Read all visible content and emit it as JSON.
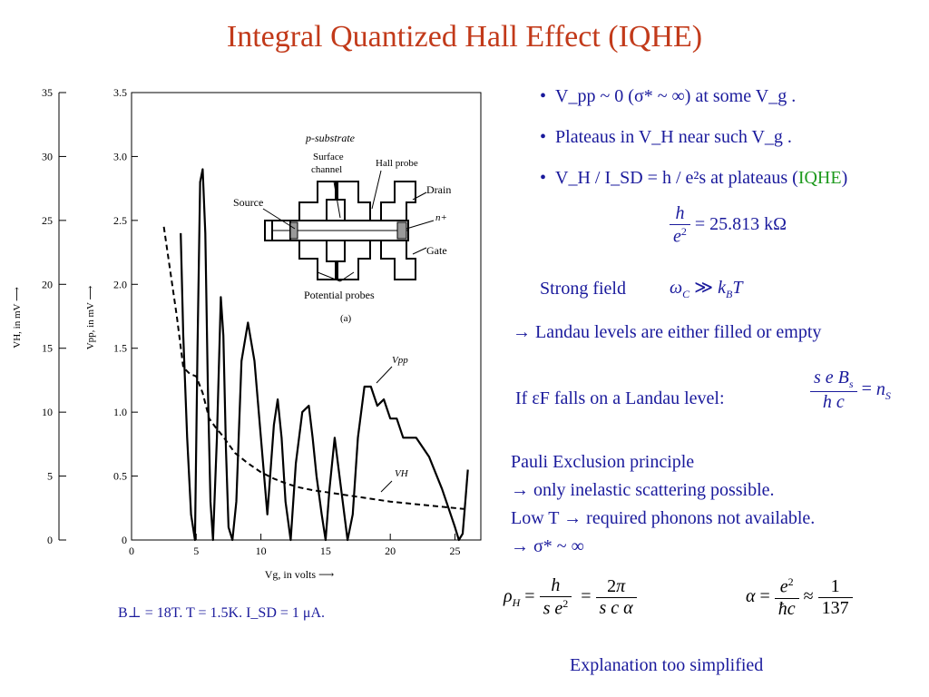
{
  "title": "Integral Quantized Hall Effect (IQHE)",
  "bullets": {
    "b1": "V_pp ~ 0 (σ* ~ ∞) at some V_g .",
    "b2": "Plateaus in V_H near such V_g .",
    "b3_prefix": "V_H / I_SD = h / e²s at plateaus (",
    "b3_green": "IQHE",
    "b3_suffix": ")"
  },
  "formulas": {
    "h_over_e2_value": "= 25.813 kΩ",
    "strong_field_label": "Strong field",
    "landau": "→  Landau levels are either filled  or empty",
    "if_label": "If εF falls on a Landau level:",
    "pauli_1": "Pauli  Exclusion principle",
    "pauli_2": "→ only inelastic scattering possible.",
    "pauli_3": "Low T → required  phonons not available.",
    "pauli_4": "→   σ* ~ ∞",
    "footer": "Explanation too simplified"
  },
  "conditions": "B⊥ = 18T.  T = 1.5K.  I_SD = 1 μA.",
  "figure": {
    "inset_labels": {
      "p_substrate": "p-substrate",
      "surface": "Surface",
      "channel": "channel",
      "hall_probe": "Hall probe",
      "source": "Source",
      "drain": "Drain",
      "nplus": "n+",
      "gate": "Gate",
      "potential_probes": "Potential probes",
      "panel": "(a)"
    },
    "curve_labels": {
      "vpp": "Vpp",
      "vh": "VH"
    },
    "left_axis_label": "VH, in mV",
    "right_axis_label": "Vpp, in mV",
    "x_axis_label": "Vg, in volts",
    "left_ticks": [
      "35",
      "30",
      "25",
      "20",
      "15",
      "10",
      "5",
      "0"
    ],
    "right_ticks": [
      "3.5",
      "3.0",
      "2.5",
      "2.0",
      "1.5",
      "1.0",
      "0.5",
      "0"
    ],
    "x_ticks": [
      "0",
      "5",
      "10",
      "15",
      "20",
      "25"
    ]
  },
  "chart_data": {
    "type": "line",
    "xlabel": "Vg, in volts",
    "ylabel": "VH, in mV",
    "ylabel_right": "Vpp, in mV",
    "xlim": [
      0,
      27
    ],
    "ylim": [
      0,
      35
    ],
    "ylim_right": [
      0,
      3.5
    ],
    "series": [
      {
        "name": "Vpp",
        "axis": "right",
        "x": [
          3.8,
          4.0,
          4.3,
          4.6,
          4.9,
          5.1,
          5.3,
          5.5,
          5.7,
          5.9,
          6.1,
          6.3,
          6.6,
          6.9,
          7.1,
          7.3,
          7.5,
          7.8,
          8.1,
          8.5,
          9.0,
          9.5,
          10.0,
          10.5,
          11.0,
          11.3,
          11.6,
          11.9,
          12.3,
          12.7,
          13.2,
          13.7,
          14.0,
          14.3,
          14.7,
          15.0,
          15.3,
          15.7,
          16.2,
          16.7,
          17.1,
          17.5,
          18.0,
          18.5,
          19.0,
          19.5,
          20.0,
          20.5,
          21.0,
          22.0,
          23.0,
          24.0,
          24.5,
          25.0,
          25.3,
          25.6,
          25.8,
          26.0
        ],
        "y": [
          2.4,
          1.6,
          0.8,
          0.2,
          0.0,
          1.5,
          2.8,
          2.9,
          2.4,
          1.2,
          0.3,
          0.0,
          0.8,
          1.9,
          1.6,
          0.7,
          0.1,
          0.0,
          0.3,
          1.4,
          1.7,
          1.4,
          0.8,
          0.2,
          0.9,
          1.1,
          0.8,
          0.3,
          0.0,
          0.6,
          1.0,
          1.05,
          0.8,
          0.5,
          0.2,
          0.0,
          0.4,
          0.8,
          0.4,
          0.0,
          0.2,
          0.8,
          1.2,
          1.2,
          1.05,
          1.1,
          0.95,
          0.95,
          0.8,
          0.8,
          0.65,
          0.4,
          0.25,
          0.1,
          0.0,
          0.05,
          0.3,
          0.55
        ]
      },
      {
        "name": "VH",
        "axis": "left",
        "x": [
          2.5,
          3.5,
          4.0,
          4.5,
          5.0,
          5.5,
          6.0,
          6.5,
          7.0,
          8.0,
          9.0,
          10.0,
          11.0,
          12.0,
          13.0,
          14.0,
          16.0,
          18.0,
          20.0,
          22.0,
          24.0,
          26.0
        ],
        "y": [
          24.5,
          17.5,
          13.5,
          13.0,
          12.8,
          11.5,
          9.5,
          8.8,
          8.2,
          6.8,
          6.0,
          5.3,
          4.8,
          4.4,
          4.1,
          3.9,
          3.6,
          3.3,
          3.0,
          2.8,
          2.6,
          2.4
        ]
      }
    ]
  }
}
